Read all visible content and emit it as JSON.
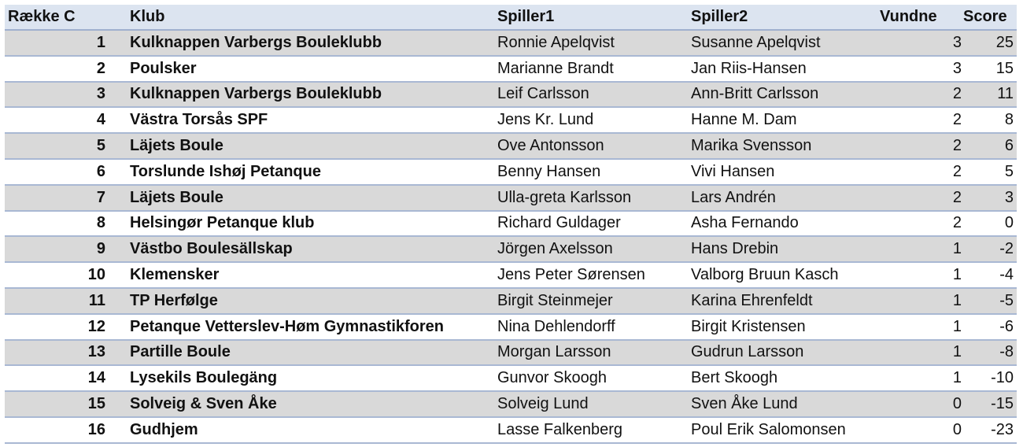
{
  "headers": {
    "rank": "Række C",
    "club": "Klub",
    "player1": "Spiller1",
    "player2": "Spiller2",
    "won": "Vundne",
    "score": "Score"
  },
  "rows": [
    {
      "rank": "1",
      "club": "Kulknappen Varbergs Bouleklubb",
      "player1": "Ronnie Apelqvist",
      "player2": "Susanne Apelqvist",
      "won": "3",
      "score": "25"
    },
    {
      "rank": "2",
      "club": "Poulsker",
      "player1": "Marianne Brandt",
      "player2": "Jan Riis-Hansen",
      "won": "3",
      "score": "15"
    },
    {
      "rank": "3",
      "club": "Kulknappen Varbergs Bouleklubb",
      "player1": "Leif Carlsson",
      "player2": "Ann-Britt Carlsson",
      "won": "2",
      "score": "11"
    },
    {
      "rank": "4",
      "club": "Västra Torsås SPF",
      "player1": "Jens Kr. Lund",
      "player2": "Hanne M. Dam",
      "won": "2",
      "score": "8"
    },
    {
      "rank": "5",
      "club": "Läjets Boule",
      "player1": "Ove Antonsson",
      "player2": "Marika Svensson",
      "won": "2",
      "score": "6"
    },
    {
      "rank": "6",
      "club": "Torslunde Ishøj Petanque",
      "player1": "Benny Hansen",
      "player2": "Vivi Hansen",
      "won": "2",
      "score": "5"
    },
    {
      "rank": "7",
      "club": "Läjets Boule",
      "player1": "Ulla-greta Karlsson",
      "player2": "Lars Andrén",
      "won": "2",
      "score": "3"
    },
    {
      "rank": "8",
      "club": "Helsingør Petanque klub",
      "player1": "Richard Guldager",
      "player2": "Asha Fernando",
      "won": "2",
      "score": "0"
    },
    {
      "rank": "9",
      "club": "Västbo Boulesällskap",
      "player1": "Jörgen Axelsson",
      "player2": "Hans Drebin",
      "won": "1",
      "score": "-2"
    },
    {
      "rank": "10",
      "club": "Klemensker",
      "player1": "Jens Peter Sørensen",
      "player2": "Valborg Bruun Kasch",
      "won": "1",
      "score": "-4"
    },
    {
      "rank": "11",
      "club": "TP Herfølge",
      "player1": "Birgit Steinmejer",
      "player2": "Karina Ehrenfeldt",
      "won": "1",
      "score": "-5"
    },
    {
      "rank": "12",
      "club": "Petanque Vetterslev-Høm Gymnastikforen",
      "player1": "Nina Dehlendorff",
      "player2": "Birgit Kristensen",
      "won": "1",
      "score": "-6"
    },
    {
      "rank": "13",
      "club": "Partille Boule",
      "player1": "Morgan Larsson",
      "player2": "Gudrun Larsson",
      "won": "1",
      "score": "-8"
    },
    {
      "rank": "14",
      "club": "Lysekils Boulegäng",
      "player1": "Gunvor Skoogh",
      "player2": "Bert Skoogh",
      "won": "1",
      "score": "-10"
    },
    {
      "rank": "15",
      "club": "Solveig & Sven Åke",
      "player1": "Solveig Lund",
      "player2": "Sven Åke Lund",
      "won": "0",
      "score": "-15"
    },
    {
      "rank": "16",
      "club": "Gudhjem",
      "player1": "Lasse Falkenberg",
      "player2": "Poul Erik Salomonsen",
      "won": "0",
      "score": "-23"
    }
  ]
}
